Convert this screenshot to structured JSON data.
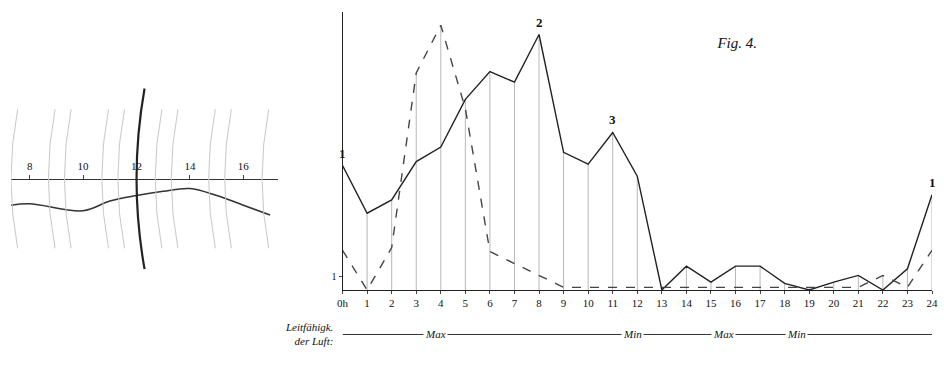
{
  "chart_data": [
    {
      "type": "line",
      "x": [
        7.3,
        8,
        10,
        11,
        12,
        13,
        14,
        15,
        16,
        17
      ],
      "values": [
        -1.9,
        -1.8,
        -2.3,
        -1.6,
        -1.2,
        -0.9,
        -0.7,
        -1.2,
        -1.9,
        -2.6
      ],
      "color": "#333333",
      "xlim": [
        7.3,
        17.3
      ],
      "xticks": [
        8,
        10,
        12,
        14,
        16
      ],
      "ylim": [
        -8,
        12
      ],
      "tick_labels": "x"
    },
    {
      "type": "line",
      "title": "Fig. 4.",
      "x": [
        0,
        1,
        2,
        3,
        4,
        5,
        6,
        7,
        8,
        9,
        10,
        11,
        12,
        13,
        14,
        15,
        16,
        17,
        18,
        19,
        20,
        21,
        22,
        23,
        24
      ],
      "series": [
        {
          "line_style": "solid",
          "color": "#222222",
          "values": [
            9.4,
            5.8,
            6.8,
            9.7,
            10.8,
            14.4,
            16.5,
            15.7,
            19.3,
            10.4,
            9.5,
            11.9,
            8.6,
            0,
            1.8,
            0.6,
            1.8,
            1.8,
            0.5,
            0,
            0.6,
            1.1,
            0,
            1.6,
            7.2
          ]
        },
        {
          "line_style": "dashed",
          "color": "#444444",
          "values": [
            3.0,
            0,
            3.2,
            16.4,
            20,
            13.7,
            2.9,
            2.0,
            1.1,
            0.2,
            0.2,
            0.2,
            0.2,
            0.2,
            0.2,
            0.2,
            0.2,
            0.2,
            0.2,
            0.2,
            0.2,
            0.2,
            1.1,
            0.2,
            3.0
          ]
        }
      ],
      "xlim": [
        0,
        24
      ],
      "xticks": [
        {
          "value": 0,
          "label": "0h"
        },
        1,
        2,
        3,
        4,
        5,
        6,
        7,
        8,
        9,
        10,
        11,
        12,
        13,
        14,
        15,
        16,
        17,
        18,
        19,
        20,
        21,
        22,
        23,
        24
      ],
      "ylim": [
        0,
        21
      ],
      "yticks": [
        1
      ],
      "grid": true,
      "annotations": [
        {
          "text": "1",
          "x": 0,
          "y": 9.4
        },
        {
          "text": "2",
          "x": 8,
          "y": 19.3
        },
        {
          "text": "3",
          "x": 11,
          "y": 11.9
        },
        {
          "text": "1",
          "x": 24,
          "y": 7.2
        }
      ],
      "conductivity": {
        "label": [
          "Leitfähigk.",
          "der Luft:"
        ],
        "marks": [
          {
            "text": "Max",
            "x": 3.8
          },
          {
            "text": "Min",
            "x": 11.8
          },
          {
            "text": "Max",
            "x": 15.5
          },
          {
            "text": "Min",
            "x": 18.5
          }
        ]
      }
    }
  ]
}
